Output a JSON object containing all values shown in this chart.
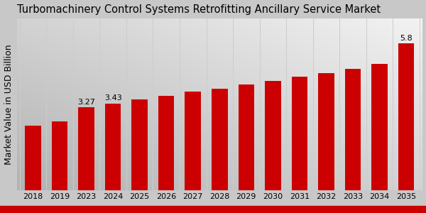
{
  "title": "Turbomachinery Control Systems Retrofitting Ancillary Service Market",
  "ylabel": "Market Value in USD Billion",
  "categories": [
    "2018",
    "2019",
    "2023",
    "2024",
    "2025",
    "2026",
    "2027",
    "2028",
    "2029",
    "2030",
    "2031",
    "2032",
    "2033",
    "2034",
    "2035"
  ],
  "values": [
    2.55,
    2.72,
    3.27,
    3.43,
    3.58,
    3.72,
    3.9,
    4.0,
    4.18,
    4.32,
    4.48,
    4.62,
    4.8,
    5.0,
    5.8
  ],
  "bar_color": "#cc0000",
  "annotations": {
    "2023": "3.27",
    "2024": "3.43",
    "2035": "5.8"
  },
  "title_fontsize": 10.5,
  "ylabel_fontsize": 9,
  "tick_fontsize": 8,
  "annotation_fontsize": 8,
  "ylim": [
    0,
    6.8
  ],
  "bottom_bar_color": "#cc0000",
  "grid_color": "#cccccc",
  "bg_top_right": "#e8e8e8",
  "bg_bottom_left": "#b0b0b0"
}
